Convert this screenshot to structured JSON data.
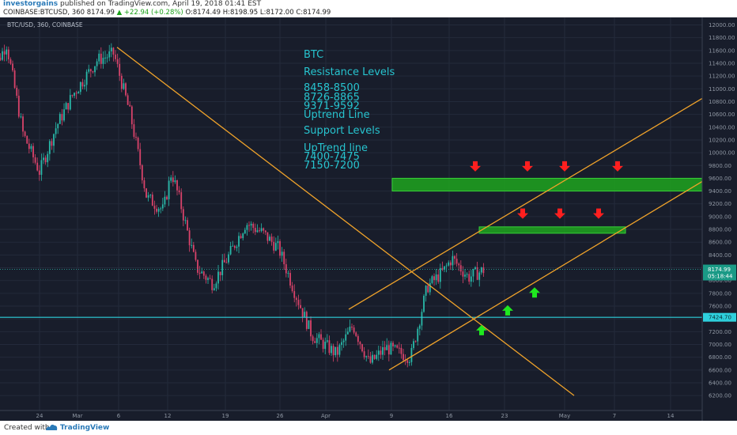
{
  "header": {
    "author": "investorgains",
    "published_text": "published on TradingView.com, April 19, 2018 01:41 EST",
    "symbol": "COINBASE:BTCUSD, 360",
    "price": "8174.99",
    "change": "▲ +22.94 (+0.28%)",
    "o_label": "O:",
    "o_value": "8174.49",
    "h_label": "H:",
    "h_value": "8198.95",
    "l_label": "L:",
    "l_value": "8172.00",
    "c_label": "C:",
    "c_value": "8174.99"
  },
  "footer": {
    "created_with": "Created with",
    "brand": "TradingView"
  },
  "colors": {
    "background": "#181d2b",
    "up": "#29b9a9",
    "down": "#d9436a",
    "trendline": "#f0a32a",
    "support": "#2ed0dd",
    "zone": "#1fa41f",
    "arrow_down": "#ff1f1f",
    "arrow_up": "#1fe81f",
    "annotation": "#27c4cf"
  },
  "chart_data": {
    "type": "candlestick",
    "title": "BTC/USD, 360, COINBASE",
    "x_ticks": [
      "24",
      "Mar",
      "6",
      "12",
      "19",
      "26",
      "Apr",
      "9",
      "16",
      "23",
      "May",
      "7",
      "14"
    ],
    "ylim": [
      6150,
      12150
    ],
    "y_ticks": [
      12000,
      11800,
      11600,
      11400,
      11200,
      11000,
      10800,
      10600,
      10400,
      10200,
      10000,
      9800,
      9600,
      9400,
      9200,
      9000,
      8800,
      8600,
      8400,
      8200,
      8000,
      7800,
      7600,
      7400,
      7200,
      7000,
      6800,
      6600,
      6400,
      6200
    ],
    "last_price": 8174.99,
    "countdown": "05:18:44",
    "support_line": 7424.7,
    "annotation": [
      "BTC",
      "Resistance Levels",
      "8458-8500",
      "8726-8865",
      "9371-9592",
      "Uptrend Line",
      "Support Levels",
      "UpTrend line",
      "7400-7475",
      "7150-7200"
    ],
    "zones": [
      {
        "name": "resistance-zone-1",
        "x_from": "Apr 9",
        "x_to": "May 20",
        "y_low": 9400,
        "y_high": 9600
      },
      {
        "name": "resistance-zone-2",
        "x_from": "Apr 25",
        "x_to": "May 9",
        "y_low": 8740,
        "y_high": 8840
      }
    ],
    "trendlines": [
      {
        "name": "downtrend-line",
        "x1": "Mar 6",
        "y1": 11650,
        "x2": "May 3",
        "y2": 6200
      },
      {
        "name": "channel-upper",
        "x1": "Apr 5",
        "y1": 7550,
        "x2": "May 20",
        "y2": 10850
      },
      {
        "name": "channel-lower",
        "x1": "Apr 8",
        "y1": 6600,
        "x2": "May 20",
        "y2": 9550
      }
    ],
    "arrows_down": [
      {
        "date": "Apr 21",
        "price": 9780
      },
      {
        "date": "Apr 26",
        "price": 9780
      },
      {
        "date": "Apr 30",
        "price": 9780
      },
      {
        "date": "May 6",
        "price": 9780
      },
      {
        "date": "Apr 26",
        "price": 9040
      },
      {
        "date": "Apr 30",
        "price": 9040
      },
      {
        "date": "May 4",
        "price": 9040
      }
    ],
    "arrows_up": [
      {
        "date": "Apr 20",
        "price": 7230
      },
      {
        "date": "Apr 23",
        "price": 7540
      },
      {
        "date": "Apr 26",
        "price": 7820
      }
    ],
    "price_path": [
      {
        "date": "Feb 18",
        "price": 11200
      },
      {
        "date": "Feb 20",
        "price": 11700
      },
      {
        "date": "Feb 22",
        "price": 10300
      },
      {
        "date": "Feb 24",
        "price": 9700
      },
      {
        "date": "Feb 26",
        "price": 10400
      },
      {
        "date": "Feb 28",
        "price": 10900
      },
      {
        "date": "Mar 3",
        "price": 11450
      },
      {
        "date": "Mar 5",
        "price": 11550
      },
      {
        "date": "Mar 7",
        "price": 10600
      },
      {
        "date": "Mar 9",
        "price": 9300
      },
      {
        "date": "Mar 11",
        "price": 9100
      },
      {
        "date": "Mar 12",
        "price": 9700
      },
      {
        "date": "Mar 13",
        "price": 9250
      },
      {
        "date": "Mar 15",
        "price": 8200
      },
      {
        "date": "Mar 17",
        "price": 7950
      },
      {
        "date": "Mar 19",
        "price": 8400
      },
      {
        "date": "Mar 21",
        "price": 8900
      },
      {
        "date": "Mar 23",
        "price": 8750
      },
      {
        "date": "Mar 25",
        "price": 8500
      },
      {
        "date": "Mar 27",
        "price": 7800
      },
      {
        "date": "Mar 29",
        "price": 7150
      },
      {
        "date": "Apr 1",
        "price": 6850
      },
      {
        "date": "Apr 3",
        "price": 7300
      },
      {
        "date": "Apr 5",
        "price": 6700
      },
      {
        "date": "Apr 7",
        "price": 6950
      },
      {
        "date": "Apr 10",
        "price": 6800
      },
      {
        "date": "Apr 12",
        "price": 7900
      },
      {
        "date": "Apr 14",
        "price": 8150
      },
      {
        "date": "Apr 15",
        "price": 8350
      },
      {
        "date": "Apr 17",
        "price": 8050
      },
      {
        "date": "Apr 19",
        "price": 8175
      }
    ]
  }
}
